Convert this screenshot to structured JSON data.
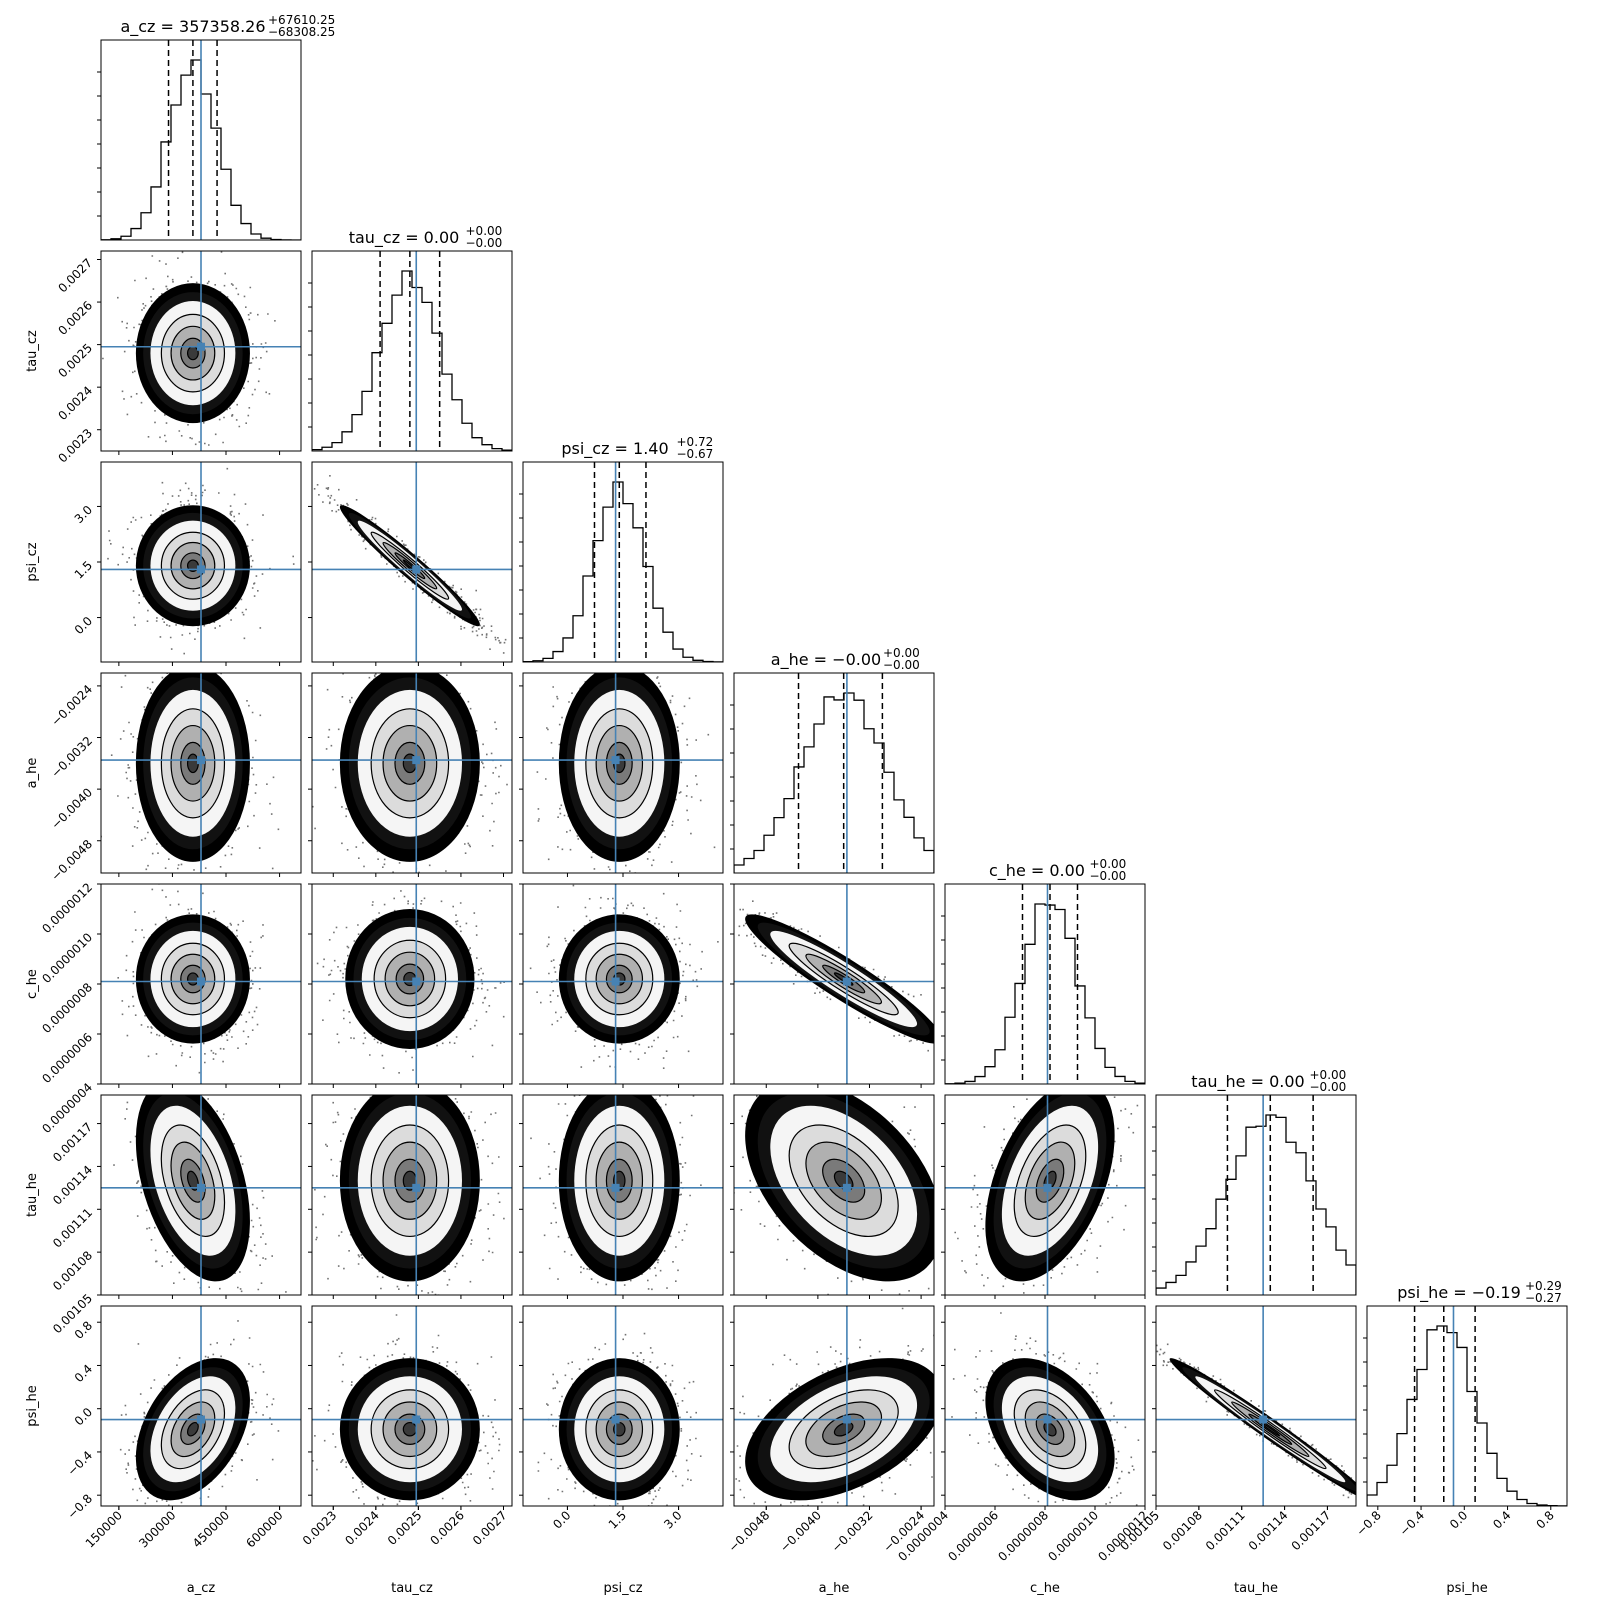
{
  "chart_data": {
    "type": "corner",
    "parameters": [
      "a_cz",
      "tau_cz",
      "psi_cz",
      "a_he",
      "c_he",
      "tau_he",
      "psi_he"
    ],
    "titles": [
      {
        "param": "a_cz",
        "prefix": "a_cz = 357358.26",
        "plus": "+67610.25",
        "minus": "−68308.25"
      },
      {
        "param": "tau_cz",
        "prefix": "tau_cz = 0.00",
        "plus": "+0.00",
        "minus": "−0.00"
      },
      {
        "param": "psi_cz",
        "prefix": "psi_cz = 1.40",
        "plus": "+0.72",
        "minus": "−0.67"
      },
      {
        "param": "a_he",
        "prefix": "a_he = −0.00",
        "plus": "+0.00",
        "minus": "−0.00"
      },
      {
        "param": "c_he",
        "prefix": "c_he = 0.00",
        "plus": "+0.00",
        "minus": "−0.00"
      },
      {
        "param": "tau_he",
        "prefix": "tau_he = 0.00",
        "plus": "+0.00",
        "minus": "−0.00"
      },
      {
        "param": "psi_he",
        "prefix": "psi_he = −0.19",
        "plus": "+0.29",
        "minus": "−0.27"
      }
    ],
    "ranges": [
      [
        100000,
        660000
      ],
      [
        0.00225,
        0.00272
      ],
      [
        -1.2,
        4.2
      ],
      [
        -0.0053,
        -0.0022
      ],
      [
        4e-07,
        1.2e-06
      ],
      [
        0.00105,
        0.00119
      ],
      [
        -0.9,
        0.95
      ]
    ],
    "ticks": [
      {
        "values": [
          150000,
          300000,
          450000,
          600000
        ],
        "labels": [
          "150000",
          "300000",
          "450000",
          "600000"
        ]
      },
      {
        "values": [
          0.0023,
          0.0024,
          0.0025,
          0.0026,
          0.0027
        ],
        "labels": [
          "0.0023",
          "0.0024",
          "0.0025",
          "0.0026",
          "0.0027"
        ]
      },
      {
        "values": [
          0.0,
          1.5,
          3.0
        ],
        "labels": [
          "0.0",
          "1.5",
          "3.0"
        ]
      },
      {
        "values": [
          -0.0048,
          -0.004,
          -0.0032,
          -0.0024
        ],
        "labels": [
          "−0.0048",
          "−0.0040",
          "−0.0032",
          "−0.0024"
        ]
      },
      {
        "values": [
          4e-07,
          6e-07,
          8e-07,
          1e-06,
          1.2e-06
        ],
        "labels": [
          "0.0000004",
          "0.0000006",
          "0.0000008",
          "0.0000010",
          "0.0000012"
        ]
      },
      {
        "values": [
          0.00105,
          0.00108,
          0.00111,
          0.00114,
          0.00117
        ],
        "labels": [
          "0.00105",
          "0.00108",
          "0.00111",
          "0.00114",
          "0.00117"
        ]
      },
      {
        "values": [
          -0.8,
          -0.4,
          0.0,
          0.4,
          0.8
        ],
        "labels": [
          "−0.8",
          "−0.4",
          "0.0",
          "0.4",
          "0.8"
        ]
      }
    ],
    "truths": [
      380000,
      0.002495,
      1.3,
      -0.00355,
      8.1e-07,
      0.001125,
      -0.1
    ],
    "quantiles": [
      [
        289050.01,
        357358.26,
        424968.51
      ],
      [
        0.00241,
        0.00248,
        0.00255
      ],
      [
        0.73,
        1.4,
        2.12
      ],
      [
        -0.0043,
        -0.0036,
        -0.003
      ],
      [
        7.1e-07,
        8.2e-07,
        9.3e-07
      ],
      [
        0.0011,
        0.00113,
        0.00116
      ],
      [
        -0.46,
        -0.19,
        0.1
      ]
    ],
    "correlations": [
      [
        1,
        0,
        0,
        0,
        0,
        0,
        0
      ],
      [
        0,
        1,
        0,
        0,
        0,
        0,
        0
      ],
      [
        0,
        -0.97,
        1,
        0,
        0,
        0,
        0
      ],
      [
        0,
        0,
        0,
        1,
        0,
        0,
        0
      ],
      [
        0,
        0,
        0,
        -0.93,
        1,
        0,
        0
      ],
      [
        -0.4,
        0,
        0,
        -0.45,
        0.45,
        1,
        0
      ],
      [
        0.4,
        0,
        0,
        0.45,
        -0.4,
        -0.985,
        1
      ]
    ],
    "truth_color": "#4682b4",
    "hist_color": "#000000"
  }
}
